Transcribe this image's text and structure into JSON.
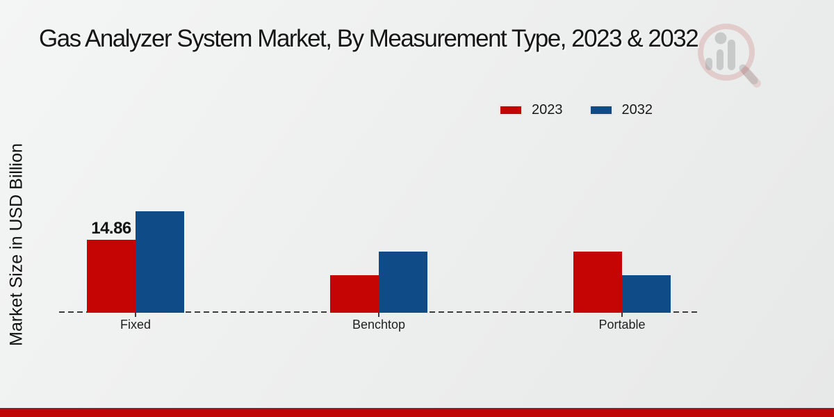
{
  "header": {
    "title": "Gas Analyzer System Market, By Measurement Type, 2023 & 2032"
  },
  "axis": {
    "ylabel": "Market Size in USD Billion"
  },
  "legend": {
    "items": [
      {
        "label": "2023",
        "color": "#c50404"
      },
      {
        "label": "2032",
        "color": "#0f4c87"
      }
    ]
  },
  "branding": {
    "logo": "magnifier-bar-chart-logo",
    "footer_bar_color": "#c00707"
  },
  "chart_data": {
    "type": "bar",
    "title": "Gas Analyzer System Market, By Measurement Type, 2023 & 2032",
    "xlabel": "",
    "ylabel": "Market Size in USD Billion",
    "categories": [
      "Fixed",
      "Benchtop",
      "Portable"
    ],
    "series": [
      {
        "name": "2023",
        "color": "#c50404",
        "values": [
          14.86,
          7.7,
          12.4
        ]
      },
      {
        "name": "2032",
        "color": "#0f4c87",
        "values": [
          20.7,
          12.4,
          7.7
        ]
      }
    ],
    "annotations": [
      {
        "series": "2023",
        "category": "Fixed",
        "text": "14.86"
      }
    ],
    "ylim": [
      0,
      22
    ],
    "grid": false,
    "y_ticks_visible": false,
    "baseline_style": "dashed",
    "legend_position": "top-right"
  }
}
